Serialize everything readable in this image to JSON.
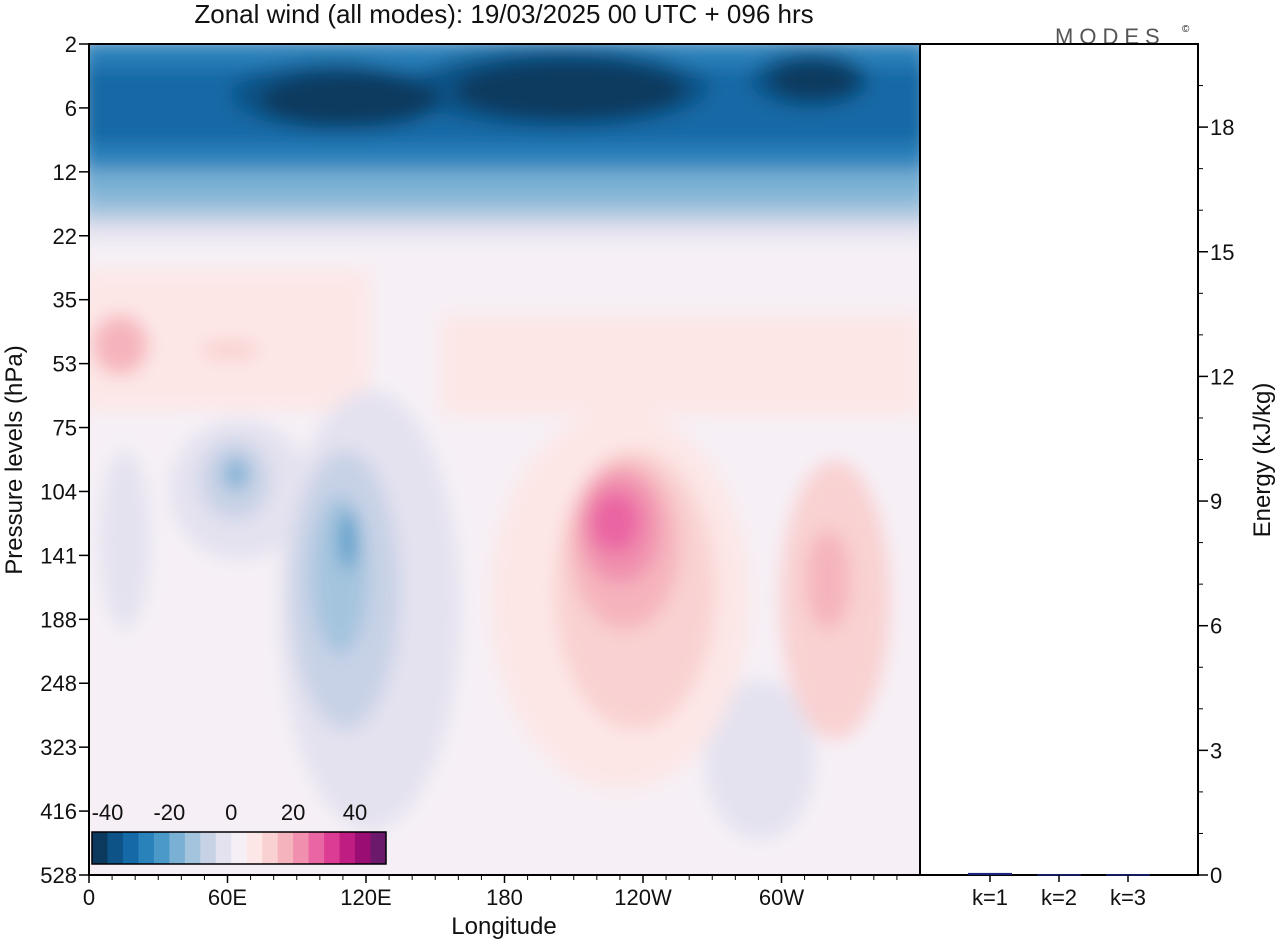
{
  "title": "Zonal wind (all modes):  19/03/2025  00 UTC  + 096 hrs",
  "brand": "MODES",
  "brand_mark": "©",
  "chart_data": [
    {
      "type": "heatmap",
      "title": "Zonal wind (all modes):  19/03/2025  00 UTC  + 096 hrs",
      "xlabel": "Longitude",
      "ylabel": "Pressure levels (hPa)",
      "x_ticks": [
        "0",
        "60E",
        "120E",
        "180",
        "120W",
        "60W"
      ],
      "x_values": [
        0,
        60,
        120,
        180,
        240,
        300
      ],
      "xlim": [
        0,
        360
      ],
      "y_ticks": [
        "2",
        "6",
        "12",
        "22",
        "35",
        "53",
        "75",
        "104",
        "141",
        "188",
        "248",
        "323",
        "416",
        "528"
      ],
      "y_scale": "model levels (top 2 hPa, bottom 528 hPa)",
      "colorbar": {
        "ticks": [
          "-40",
          "-20",
          "0",
          "20",
          "40"
        ],
        "levels": [
          -45,
          -40,
          -35,
          -30,
          -25,
          -20,
          -15,
          -10,
          -5,
          0,
          5,
          10,
          15,
          20,
          25,
          30,
          35,
          40,
          45,
          50
        ],
        "colors": [
          "#0c3a5e",
          "#0d5387",
          "#1469a6",
          "#2a82bb",
          "#4b99c8",
          "#79b0d4",
          "#a4c4de",
          "#c8d2e6",
          "#e4e2ef",
          "#f6f0f6",
          "#fde7e6",
          "#f9d1d2",
          "#f5b4bd",
          "#f08fae",
          "#ea65a3",
          "#dc3c94",
          "#c01d83",
          "#9a0d73",
          "#6b1a6b"
        ]
      },
      "features": [
        {
          "name": "stratospheric easterly core",
          "lon": [
            30,
            360
          ],
          "p": [
            2,
            12
          ],
          "u": -45
        },
        {
          "name": "upper westerlies",
          "lon": [
            0,
            360
          ],
          "p": [
            22,
            75
          ],
          "u": 10
        },
        {
          "name": "easterly tongue 120E",
          "lon": [
            85,
            150
          ],
          "p": [
            75,
            416
          ],
          "u": -20
        },
        {
          "name": "easterly cell 60E",
          "lon": [
            45,
            75
          ],
          "p": [
            75,
            141
          ],
          "u": -15
        },
        {
          "name": "westerly jet 120W",
          "lon": [
            210,
            270
          ],
          "p": [
            75,
            323
          ],
          "u": 30
        },
        {
          "name": "westerly cell 60W",
          "lon": [
            305,
            345
          ],
          "p": [
            104,
            248
          ],
          "u": 15
        }
      ]
    },
    {
      "type": "bar",
      "categories": [
        "k=1",
        "k=2",
        "k=3"
      ],
      "values": [
        0.05,
        0.02,
        0.02
      ],
      "ylabel": "Energy (kJ/kg)",
      "y_ticks": [
        "0",
        "3",
        "6",
        "9",
        "12",
        "15",
        "18"
      ],
      "ylim": [
        0,
        20
      ],
      "bar_color": "#1a237e"
    }
  ]
}
